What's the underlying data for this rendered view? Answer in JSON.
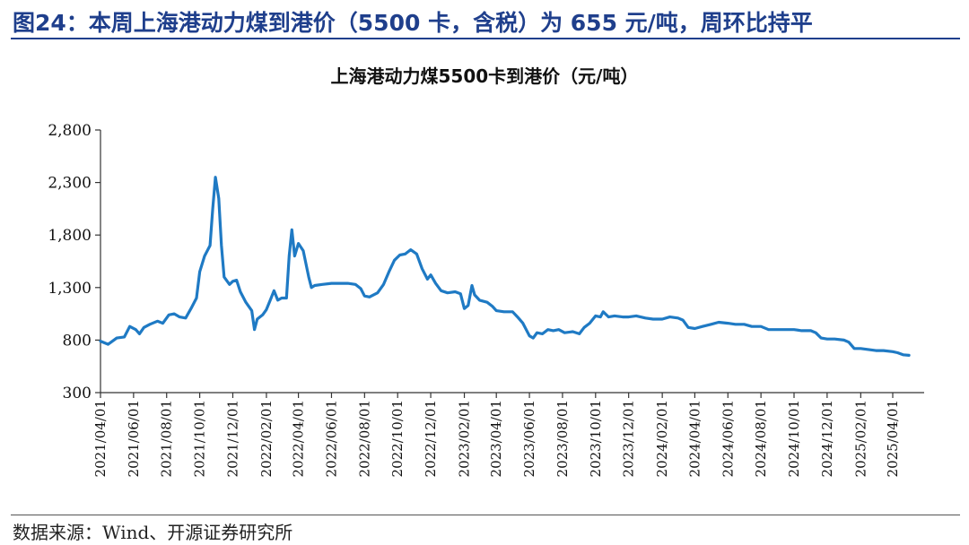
{
  "figure_title": "图24：本周上海港动力煤到港价（5500 卡，含税）为 655 元/吨，周环比持平",
  "source": "数据来源：Wind、开源证券研究所",
  "line_color": "#1f7ac4",
  "title_color": "#1f3f8c",
  "chart_data": {
    "type": "line",
    "title": "上海港动力煤5500卡到港价（元/吨）",
    "xlabel": "",
    "ylabel": "",
    "ylim": [
      300,
      2800
    ],
    "yticks": [
      "2,800",
      "2,300",
      "1,800",
      "1,300",
      "800",
      "300"
    ],
    "ytick_values": [
      2800,
      2300,
      1800,
      1300,
      800,
      300
    ],
    "xticks": [
      "2021/04/01",
      "2021/06/01",
      "2021/08/01",
      "2021/10/01",
      "2021/12/01",
      "2022/02/01",
      "2022/04/01",
      "2022/06/01",
      "2022/08/01",
      "2022/10/01",
      "2022/12/01",
      "2023/02/01",
      "2023/04/01",
      "2023/06/01",
      "2023/08/01",
      "2023/10/01",
      "2023/12/01",
      "2024/02/01",
      "2024/04/01",
      "2024/06/01",
      "2024/08/01",
      "2024/10/01",
      "2024/12/01",
      "2025/02/01",
      "2025/04/01"
    ],
    "grid": false,
    "legend": "none",
    "series": [
      {
        "points": [
          [
            "2021/04/01",
            790
          ],
          [
            "2021/04/15",
            760
          ],
          [
            "2021/05/01",
            820
          ],
          [
            "2021/05/15",
            830
          ],
          [
            "2021/05/25",
            930
          ],
          [
            "2021/06/05",
            900
          ],
          [
            "2021/06/12",
            860
          ],
          [
            "2021/06/20",
            920
          ],
          [
            "2021/07/01",
            950
          ],
          [
            "2021/07/15",
            980
          ],
          [
            "2021/07/25",
            960
          ],
          [
            "2021/08/05",
            1040
          ],
          [
            "2021/08/15",
            1050
          ],
          [
            "2021/08/25",
            1020
          ],
          [
            "2021/09/05",
            1010
          ],
          [
            "2021/09/15",
            1100
          ],
          [
            "2021/09/25",
            1200
          ],
          [
            "2021/10/01",
            1450
          ],
          [
            "2021/10/10",
            1600
          ],
          [
            "2021/10/20",
            1700
          ],
          [
            "2021/10/25",
            2050
          ],
          [
            "2021/10/30",
            2350
          ],
          [
            "2021/11/05",
            2150
          ],
          [
            "2021/11/10",
            1700
          ],
          [
            "2021/11/15",
            1400
          ],
          [
            "2021/11/25",
            1330
          ],
          [
            "2021/12/01",
            1360
          ],
          [
            "2021/12/08",
            1370
          ],
          [
            "2021/12/15",
            1260
          ],
          [
            "2021/12/25",
            1160
          ],
          [
            "2022/01/05",
            1080
          ],
          [
            "2022/01/10",
            900
          ],
          [
            "2022/01/15",
            1000
          ],
          [
            "2022/01/25",
            1040
          ],
          [
            "2022/02/01",
            1090
          ],
          [
            "2022/02/08",
            1180
          ],
          [
            "2022/02/15",
            1270
          ],
          [
            "2022/02/22",
            1180
          ],
          [
            "2022/03/01",
            1200
          ],
          [
            "2022/03/10",
            1200
          ],
          [
            "2022/03/15",
            1600
          ],
          [
            "2022/03/20",
            1850
          ],
          [
            "2022/03/25",
            1600
          ],
          [
            "2022/04/01",
            1720
          ],
          [
            "2022/04/10",
            1650
          ],
          [
            "2022/04/20",
            1400
          ],
          [
            "2022/04/25",
            1300
          ],
          [
            "2022/05/01",
            1320
          ],
          [
            "2022/05/15",
            1330
          ],
          [
            "2022/06/01",
            1340
          ],
          [
            "2022/07/01",
            1340
          ],
          [
            "2022/07/15",
            1330
          ],
          [
            "2022/07/25",
            1290
          ],
          [
            "2022/08/01",
            1220
          ],
          [
            "2022/08/10",
            1210
          ],
          [
            "2022/08/25",
            1250
          ],
          [
            "2022/09/05",
            1330
          ],
          [
            "2022/09/15",
            1450
          ],
          [
            "2022/09/25",
            1560
          ],
          [
            "2022/10/05",
            1610
          ],
          [
            "2022/10/15",
            1620
          ],
          [
            "2022/10/25",
            1660
          ],
          [
            "2022/11/05",
            1620
          ],
          [
            "2022/11/15",
            1480
          ],
          [
            "2022/11/25",
            1380
          ],
          [
            "2022/12/01",
            1420
          ],
          [
            "2022/12/10",
            1340
          ],
          [
            "2022/12/20",
            1270
          ],
          [
            "2023/01/01",
            1250
          ],
          [
            "2023/01/15",
            1260
          ],
          [
            "2023/01/25",
            1240
          ],
          [
            "2023/02/01",
            1100
          ],
          [
            "2023/02/08",
            1130
          ],
          [
            "2023/02/15",
            1320
          ],
          [
            "2023/02/20",
            1230
          ],
          [
            "2023/03/01",
            1180
          ],
          [
            "2023/03/15",
            1160
          ],
          [
            "2023/03/25",
            1120
          ],
          [
            "2023/04/01",
            1080
          ],
          [
            "2023/04/15",
            1070
          ],
          [
            "2023/05/01",
            1070
          ],
          [
            "2023/05/10",
            1020
          ],
          [
            "2023/05/20",
            960
          ],
          [
            "2023/06/01",
            840
          ],
          [
            "2023/06/08",
            820
          ],
          [
            "2023/06/15",
            870
          ],
          [
            "2023/06/25",
            860
          ],
          [
            "2023/07/05",
            900
          ],
          [
            "2023/07/15",
            890
          ],
          [
            "2023/07/25",
            900
          ],
          [
            "2023/08/05",
            870
          ],
          [
            "2023/08/20",
            880
          ],
          [
            "2023/09/01",
            860
          ],
          [
            "2023/09/10",
            920
          ],
          [
            "2023/09/20",
            960
          ],
          [
            "2023/10/01",
            1030
          ],
          [
            "2023/10/10",
            1020
          ],
          [
            "2023/10/15",
            1070
          ],
          [
            "2023/10/25",
            1020
          ],
          [
            "2023/11/05",
            1030
          ],
          [
            "2023/11/20",
            1020
          ],
          [
            "2023/12/01",
            1020
          ],
          [
            "2023/12/15",
            1030
          ],
          [
            "2024/01/01",
            1010
          ],
          [
            "2024/01/15",
            1000
          ],
          [
            "2024/02/01",
            1000
          ],
          [
            "2024/02/15",
            1020
          ],
          [
            "2024/03/01",
            1010
          ],
          [
            "2024/03/10",
            990
          ],
          [
            "2024/03/20",
            920
          ],
          [
            "2024/04/01",
            910
          ],
          [
            "2024/04/15",
            930
          ],
          [
            "2024/05/01",
            950
          ],
          [
            "2024/05/15",
            970
          ],
          [
            "2024/06/01",
            960
          ],
          [
            "2024/06/15",
            950
          ],
          [
            "2024/07/01",
            950
          ],
          [
            "2024/07/15",
            930
          ],
          [
            "2024/08/01",
            930
          ],
          [
            "2024/08/15",
            900
          ],
          [
            "2024/09/01",
            900
          ],
          [
            "2024/09/15",
            900
          ],
          [
            "2024/10/01",
            900
          ],
          [
            "2024/10/15",
            890
          ],
          [
            "2024/11/01",
            890
          ],
          [
            "2024/11/10",
            870
          ],
          [
            "2024/11/20",
            820
          ],
          [
            "2024/12/01",
            810
          ],
          [
            "2024/12/15",
            810
          ],
          [
            "2025/01/01",
            800
          ],
          [
            "2025/01/10",
            780
          ],
          [
            "2025/01/20",
            720
          ],
          [
            "2025/02/01",
            720
          ],
          [
            "2025/02/15",
            710
          ],
          [
            "2025/03/01",
            700
          ],
          [
            "2025/03/15",
            700
          ],
          [
            "2025/04/01",
            690
          ],
          [
            "2025/04/10",
            680
          ],
          [
            "2025/04/20",
            660
          ],
          [
            "2025/05/01",
            655
          ]
        ]
      }
    ]
  }
}
